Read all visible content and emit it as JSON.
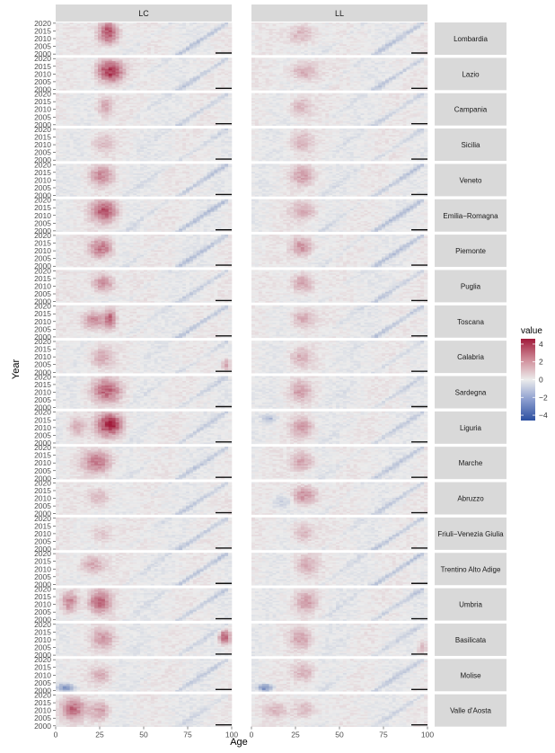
{
  "chart_data": {
    "type": "heatmap",
    "title": "",
    "xlabel": "Age",
    "ylabel": "Year",
    "x_range": [
      0,
      100
    ],
    "y_range": [
      2000,
      2020
    ],
    "x_ticks": [
      "0",
      "25",
      "50",
      "75",
      "100"
    ],
    "y_ticks": [
      "2000",
      "2005",
      "2010",
      "2015",
      "2020"
    ],
    "columns": [
      "LC",
      "LL"
    ],
    "rows": [
      "Lombardia",
      "Lazio",
      "Campania",
      "Sicilia",
      "Veneto",
      "Emilia−Romagna",
      "Piemonte",
      "Puglia",
      "Toscana",
      "Calabria",
      "Sardegna",
      "Liguria",
      "Marche",
      "Abruzzo",
      "Friuli−Venezia Giulia",
      "Trentino Alto Adige",
      "Umbria",
      "Basilicata",
      "Molise",
      "Valle d'Aosta"
    ],
    "legend": {
      "title": "value",
      "position": "right",
      "ticks": [
        "4",
        "2",
        "0",
        "−2",
        "−4"
      ],
      "tick_values": [
        4,
        2,
        0,
        -2,
        -4
      ],
      "range": [
        -4.6,
        4.6
      ],
      "colors": {
        "low": "#2c4fa0",
        "mid": "#ececec",
        "high": "#a11a3a"
      }
    },
    "panel_background": "#ebebeb",
    "strip_fill": "#d9d9d9",
    "hotspots": {
      "Lombardia": {
        "lc": [
          [
            30,
            2014,
            7,
            9,
            3.6
          ]
        ],
        "ll": [
          [
            29,
            2013,
            10,
            8,
            1.3
          ]
        ],
        "diag": 1.1
      },
      "Lazio": {
        "lc": [
          [
            31,
            2012,
            9,
            9,
            4.2
          ]
        ],
        "ll": [
          [
            30,
            2012,
            10,
            8,
            1.5
          ]
        ],
        "diag": 1.0
      },
      "Campania": {
        "lc": [
          [
            28,
            2012,
            6,
            8,
            1.6
          ]
        ],
        "ll": [
          [
            28,
            2012,
            8,
            8,
            1.3
          ]
        ],
        "diag": 0.9
      },
      "Sicilia": {
        "lc": [
          [
            27,
            2011,
            8,
            8,
            1.0
          ]
        ],
        "ll": [
          [
            28,
            2012,
            8,
            8,
            1.2
          ]
        ],
        "diag": 0.7
      },
      "Veneto": {
        "lc": [
          [
            26,
            2013,
            8,
            8,
            2.1
          ]
        ],
        "ll": [
          [
            29,
            2013,
            8,
            8,
            1.6
          ]
        ],
        "diag": 1.1
      },
      "Emilia−Romagna": {
        "lc": [
          [
            28,
            2013,
            9,
            9,
            3.3
          ]
        ],
        "ll": [
          [
            30,
            2013,
            9,
            8,
            1.4
          ]
        ],
        "diag": 1.3
      },
      "Piemonte": {
        "lc": [
          [
            26,
            2012,
            8,
            8,
            2.7
          ]
        ],
        "ll": [
          [
            29,
            2013,
            8,
            8,
            2.0
          ]
        ],
        "diag": 1.2
      },
      "Puglia": {
        "lc": [
          [
            27,
            2012,
            8,
            8,
            2.2
          ]
        ],
        "ll": [
          [
            29,
            2012,
            8,
            8,
            1.8
          ]
        ],
        "diag": 0.9
      },
      "Toscana": {
        "lc": [
          [
            22,
            2011,
            9,
            8,
            2.2
          ],
          [
            31,
            2012,
            4,
            8,
            2.6
          ]
        ],
        "ll": [
          [
            29,
            2012,
            8,
            8,
            1.5
          ]
        ],
        "diag": 1.2
      },
      "Calabria": {
        "lc": [
          [
            26,
            2010,
            8,
            8,
            1.6
          ],
          [
            97,
            2005,
            3,
            5,
            1.8
          ]
        ],
        "ll": [
          [
            28,
            2010,
            8,
            8,
            1.3
          ]
        ],
        "diag": 0.6
      },
      "Sardegna": {
        "lc": [
          [
            29,
            2011,
            10,
            9,
            3.0
          ]
        ],
        "ll": [
          [
            28,
            2011,
            8,
            8,
            1.6
          ]
        ],
        "diag": 0.7
      },
      "Liguria": {
        "lc": [
          [
            31,
            2012,
            9,
            9,
            4.4
          ],
          [
            12,
            2011,
            6,
            8,
            1.4
          ]
        ],
        "ll": [
          [
            29,
            2010,
            8,
            8,
            1.8
          ],
          [
            10,
            2016,
            5,
            3,
            -1.6
          ]
        ],
        "diag": 0.8
      },
      "Marche": {
        "lc": [
          [
            24,
            2011,
            10,
            9,
            2.6
          ]
        ],
        "ll": [
          [
            29,
            2011,
            8,
            8,
            1.7
          ]
        ],
        "diag": 1.0
      },
      "Abruzzo": {
        "lc": [
          [
            25,
            2011,
            9,
            8,
            1.2
          ]
        ],
        "ll": [
          [
            30,
            2012,
            9,
            8,
            2.2
          ],
          [
            18,
            2008,
            8,
            6,
            -0.9
          ]
        ],
        "diag": 0.9
      },
      "Friuli−Venezia Giulia": {
        "lc": [
          [
            26,
            2010,
            8,
            8,
            1.0
          ]
        ],
        "ll": [
          [
            29,
            2011,
            8,
            8,
            1.3
          ]
        ],
        "diag": 1.1
      },
      "Trentino Alto Adige": {
        "lc": [
          [
            21,
            2013,
            9,
            8,
            1.6
          ]
        ],
        "ll": [
          [
            31,
            2013,
            8,
            8,
            1.4
          ]
        ],
        "diag": 1.3
      },
      "Umbria": {
        "lc": [
          [
            8,
            2012,
            6,
            9,
            2.5
          ],
          [
            25,
            2012,
            8,
            9,
            2.9
          ]
        ],
        "ll": [
          [
            31,
            2012,
            8,
            8,
            1.6
          ]
        ],
        "diag": 1.0
      },
      "Basilicata": {
        "lc": [
          [
            27,
            2011,
            8,
            8,
            1.8
          ],
          [
            96,
            2012,
            4,
            6,
            3.2
          ]
        ],
        "ll": [
          [
            28,
            2011,
            8,
            8,
            1.6
          ],
          [
            97,
            2005,
            3,
            5,
            1.5
          ]
        ],
        "diag": 0.7
      },
      "Molise": {
        "lc": [
          [
            26,
            2010,
            8,
            7,
            1.3
          ],
          [
            6,
            2002,
            6,
            3,
            -2.8
          ]
        ],
        "ll": [
          [
            30,
            2012,
            8,
            8,
            1.4
          ],
          [
            8,
            2002,
            5,
            3,
            -3.0
          ]
        ],
        "diag": 0.9
      },
      "Valle d'Aosta": {
        "lc": [
          [
            10,
            2011,
            8,
            8,
            2.8
          ],
          [
            25,
            2010,
            7,
            8,
            1.9
          ]
        ],
        "ll": [
          [
            30,
            2011,
            8,
            8,
            1.3
          ],
          [
            14,
            2010,
            8,
            6,
            1.1
          ]
        ],
        "diag": 0.6
      }
    }
  }
}
